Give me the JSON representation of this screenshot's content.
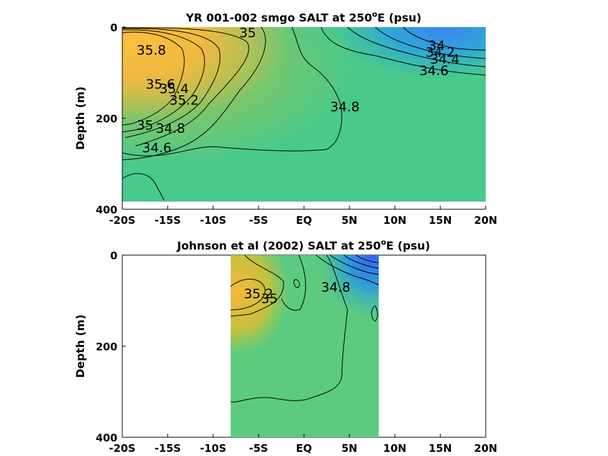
{
  "chart_data": [
    {
      "type": "heatmap",
      "title_prefix": "YR 001-002 smgo SALT at 250",
      "title_sup": "o",
      "title_suffix": "E (psu)",
      "xlabel": "",
      "ylabel": "Depth (m)",
      "x_ticks": [
        "-20S",
        "-15S",
        "-10S",
        "-5S",
        "EQ",
        "5N",
        "10N",
        "15N",
        "20N"
      ],
      "y_ticks": [
        "0",
        "200",
        "400"
      ],
      "xlim": [
        -20,
        20
      ],
      "ylim": [
        0,
        400
      ],
      "data_xrange": [
        -20,
        20
      ],
      "data_yrange": [
        0,
        380
      ],
      "contour_labels": [
        {
          "text": "35.8",
          "x": -16.8,
          "y": 60
        },
        {
          "text": "35.6",
          "x": -15.8,
          "y": 135
        },
        {
          "text": "35.4",
          "x": -14.3,
          "y": 145
        },
        {
          "text": "35.2",
          "x": -13.2,
          "y": 170
        },
        {
          "text": "35",
          "x": -6.2,
          "y": 22
        },
        {
          "text": "35",
          "x": -17.5,
          "y": 225
        },
        {
          "text": "34.8",
          "x": -14.7,
          "y": 232
        },
        {
          "text": "34.6",
          "x": -16.2,
          "y": 275
        },
        {
          "text": "34.8",
          "x": 4.5,
          "y": 185
        },
        {
          "text": "34",
          "x": 14.6,
          "y": 50
        },
        {
          "text": "34.2",
          "x": 15.0,
          "y": 65
        },
        {
          "text": "34.4",
          "x": 15.5,
          "y": 80
        },
        {
          "text": "34.6",
          "x": 14.3,
          "y": 105
        }
      ]
    },
    {
      "type": "heatmap",
      "title_prefix": "Johnson et al (2002) SALT at 250",
      "title_sup": "o",
      "title_suffix": "E (psu)",
      "xlabel": "",
      "ylabel": "Depth (m)",
      "x_ticks": [
        "-20S",
        "-15S",
        "-10S",
        "-5S",
        "EQ",
        "5N",
        "10N",
        "15N",
        "20N"
      ],
      "y_ticks": [
        "0",
        "200",
        "400"
      ],
      "xlim": [
        -20,
        20
      ],
      "ylim": [
        0,
        400
      ],
      "data_xrange": [
        -8,
        8.3
      ],
      "data_yrange": [
        0,
        400
      ],
      "contour_labels": [
        {
          "text": "35.2",
          "x": -5.0,
          "y": 95
        },
        {
          "text": "35",
          "x": -3.8,
          "y": 105
        },
        {
          "text": "34.8",
          "x": 3.5,
          "y": 80
        }
      ]
    }
  ],
  "colors": {
    "high": "#f6b73c",
    "mid": "#7fc75a",
    "base": "#4dc88a",
    "low": "#3a83f0"
  }
}
